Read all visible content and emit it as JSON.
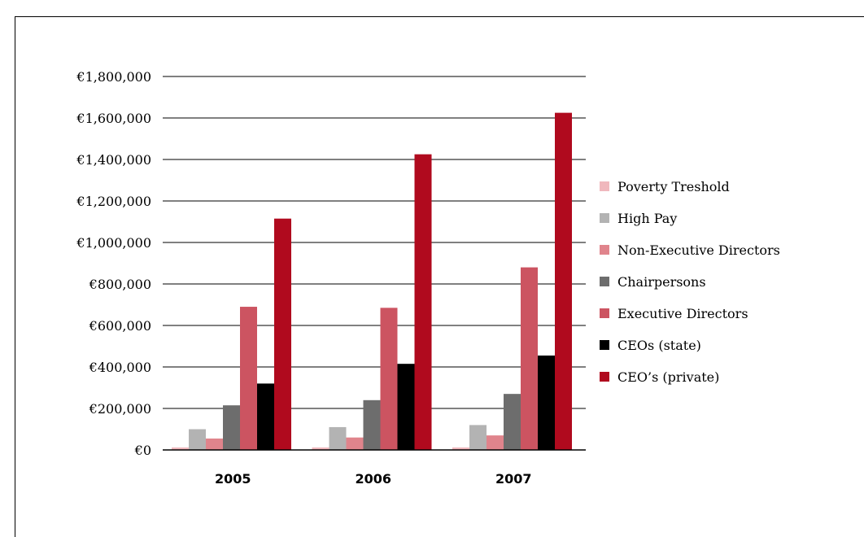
{
  "chart_data": {
    "type": "bar",
    "title": "",
    "xlabel": "",
    "ylabel": "",
    "categories": [
      "2005",
      "2006",
      "2007"
    ],
    "ylim": [
      0,
      1800000
    ],
    "y_ticks": [
      0,
      200000,
      400000,
      600000,
      800000,
      1000000,
      1200000,
      1400000,
      1600000,
      1800000
    ],
    "y_tick_labels": [
      "€0",
      "€200,000",
      "€400,000",
      "€600,000",
      "€800,000",
      "€1,000,000",
      "€1,200,000",
      "€1,400,000",
      "€1,600,000",
      "€1,800,000"
    ],
    "grid": true,
    "legend_position": "right",
    "series": [
      {
        "name": "Poverty Treshold",
        "color": "#f0b8bd",
        "values": [
          12000,
          12000,
          12000
        ]
      },
      {
        "name": "High Pay",
        "color": "#b3b3b3",
        "values": [
          100000,
          110000,
          120000
        ]
      },
      {
        "name": "Non-Executive Directors",
        "color": "#e0848c",
        "values": [
          55000,
          60000,
          70000
        ]
      },
      {
        "name": "Chairpersons",
        "color": "#6d6d6d",
        "values": [
          215000,
          240000,
          270000
        ]
      },
      {
        "name": "Executive Directors",
        "color": "#cc5461",
        "values": [
          690000,
          685000,
          880000
        ]
      },
      {
        "name": "CEOs (state)",
        "color": "#000000",
        "values": [
          320000,
          415000,
          455000
        ]
      },
      {
        "name": "CEO’s (private)",
        "color": "#b00a1e",
        "values": [
          1115000,
          1425000,
          1625000
        ]
      }
    ]
  }
}
